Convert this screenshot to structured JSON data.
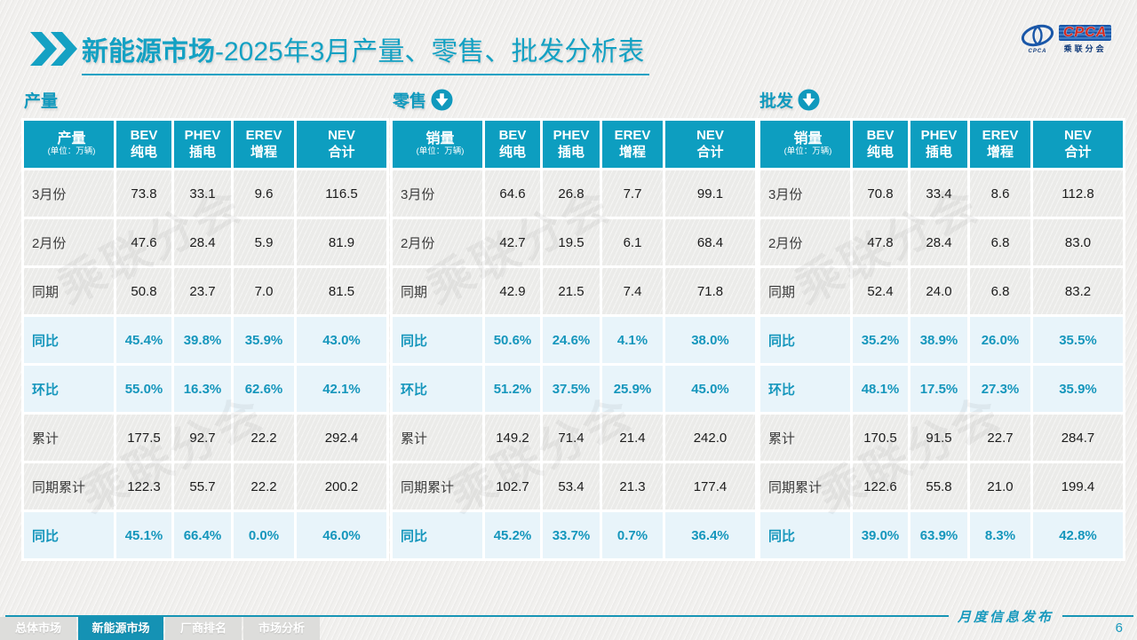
{
  "title": {
    "brand": "新能源市场",
    "rest": "-2025年3月产量、零售、批发分析表"
  },
  "logo": {
    "cpca": "CPCA",
    "swirl_caption": "CPCA",
    "name": "乘联分会"
  },
  "icons": {
    "header_chevron": "double-chevron-right",
    "section_arrow": "circle-down-arrow"
  },
  "colors": {
    "teal": "#0d9ec0",
    "percent_text": "#1596bc",
    "active_tab": "#1592b4",
    "logo_blue": "#1a57a8",
    "logo_red": "#d42a20"
  },
  "watermark": "乘联分会",
  "tables": [
    {
      "section": "产量",
      "corner": {
        "label": "产量",
        "unit": "(单位：万辆)"
      },
      "columns": [
        {
          "en": "BEV",
          "cn": "纯电"
        },
        {
          "en": "PHEV",
          "cn": "插电"
        },
        {
          "en": "EREV",
          "cn": "增程"
        },
        {
          "en": "NEV",
          "cn": "合计"
        }
      ],
      "rows": [
        {
          "label": "3月份",
          "type": "data",
          "values": [
            "73.8",
            "33.1",
            "9.6",
            "116.5"
          ]
        },
        {
          "label": "2月份",
          "type": "data",
          "values": [
            "47.6",
            "28.4",
            "5.9",
            "81.9"
          ]
        },
        {
          "label": "同期",
          "type": "data",
          "values": [
            "50.8",
            "23.7",
            "7.0",
            "81.5"
          ]
        },
        {
          "label": "同比",
          "type": "percent",
          "values": [
            "45.4%",
            "39.8%",
            "35.9%",
            "43.0%"
          ]
        },
        {
          "label": "环比",
          "type": "percent",
          "values": [
            "55.0%",
            "16.3%",
            "62.6%",
            "42.1%"
          ]
        },
        {
          "label": "累计",
          "type": "data",
          "values": [
            "177.5",
            "92.7",
            "22.2",
            "292.4"
          ]
        },
        {
          "label": "同期累计",
          "type": "data",
          "values": [
            "122.3",
            "55.7",
            "22.2",
            "200.2"
          ]
        },
        {
          "label": "同比",
          "type": "percent",
          "values": [
            "45.1%",
            "66.4%",
            "0.0%",
            "46.0%"
          ]
        }
      ]
    },
    {
      "section": "零售",
      "corner": {
        "label": "销量",
        "unit": "(单位：万辆)"
      },
      "columns": [
        {
          "en": "BEV",
          "cn": "纯电"
        },
        {
          "en": "PHEV",
          "cn": "插电"
        },
        {
          "en": "EREV",
          "cn": "增程"
        },
        {
          "en": "NEV",
          "cn": "合计"
        }
      ],
      "rows": [
        {
          "label": "3月份",
          "type": "data",
          "values": [
            "64.6",
            "26.8",
            "7.7",
            "99.1"
          ]
        },
        {
          "label": "2月份",
          "type": "data",
          "values": [
            "42.7",
            "19.5",
            "6.1",
            "68.4"
          ]
        },
        {
          "label": "同期",
          "type": "data",
          "values": [
            "42.9",
            "21.5",
            "7.4",
            "71.8"
          ]
        },
        {
          "label": "同比",
          "type": "percent",
          "values": [
            "50.6%",
            "24.6%",
            "4.1%",
            "38.0%"
          ]
        },
        {
          "label": "环比",
          "type": "percent",
          "values": [
            "51.2%",
            "37.5%",
            "25.9%",
            "45.0%"
          ]
        },
        {
          "label": "累计",
          "type": "data",
          "values": [
            "149.2",
            "71.4",
            "21.4",
            "242.0"
          ]
        },
        {
          "label": "同期累计",
          "type": "data",
          "values": [
            "102.7",
            "53.4",
            "21.3",
            "177.4"
          ]
        },
        {
          "label": "同比",
          "type": "percent",
          "values": [
            "45.2%",
            "33.7%",
            "0.7%",
            "36.4%"
          ]
        }
      ]
    },
    {
      "section": "批发",
      "corner": {
        "label": "销量",
        "unit": "(单位：万辆)"
      },
      "columns": [
        {
          "en": "BEV",
          "cn": "纯电"
        },
        {
          "en": "PHEV",
          "cn": "插电"
        },
        {
          "en": "EREV",
          "cn": "增程"
        },
        {
          "en": "NEV",
          "cn": "合计"
        }
      ],
      "rows": [
        {
          "label": "3月份",
          "type": "data",
          "values": [
            "70.8",
            "33.4",
            "8.6",
            "112.8"
          ]
        },
        {
          "label": "2月份",
          "type": "data",
          "values": [
            "47.8",
            "28.4",
            "6.8",
            "83.0"
          ]
        },
        {
          "label": "同期",
          "type": "data",
          "values": [
            "52.4",
            "24.0",
            "6.8",
            "83.2"
          ]
        },
        {
          "label": "同比",
          "type": "percent",
          "values": [
            "35.2%",
            "38.9%",
            "26.0%",
            "35.5%"
          ]
        },
        {
          "label": "环比",
          "type": "percent",
          "values": [
            "48.1%",
            "17.5%",
            "27.3%",
            "35.9%"
          ]
        },
        {
          "label": "累计",
          "type": "data",
          "values": [
            "170.5",
            "91.5",
            "22.7",
            "284.7"
          ]
        },
        {
          "label": "同期累计",
          "type": "data",
          "values": [
            "122.6",
            "55.8",
            "21.0",
            "199.4"
          ]
        },
        {
          "label": "同比",
          "type": "percent",
          "values": [
            "39.0%",
            "63.9%",
            "8.3%",
            "42.8%"
          ]
        }
      ]
    }
  ],
  "footer": {
    "tabs": [
      {
        "label": "总体市场",
        "active": false
      },
      {
        "label": "新能源市场",
        "active": true
      },
      {
        "label": "厂商排名",
        "active": false
      },
      {
        "label": "市场分析",
        "active": false
      }
    ],
    "publication": "月度信息发布",
    "page": "6"
  }
}
